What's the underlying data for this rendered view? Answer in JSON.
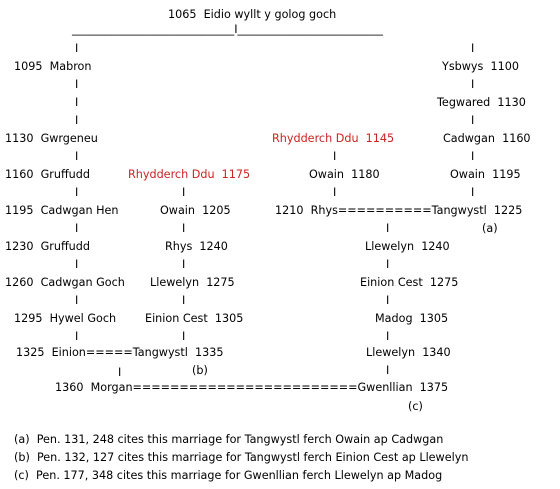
{
  "colors": {
    "text": "#000000",
    "highlight": "#cc2222"
  },
  "top": {
    "ancestor": "1065  Eidio wyllt y golog goch",
    "connector": "_____________________________I__________________________"
  },
  "left": {
    "p1095": "1095  Mabron",
    "p1130": "1130  Gwrgeneu",
    "p1160": "1160  Gruffudd",
    "p1195": "1195  Cadwgan Hen",
    "p1230": "1230  Gruffudd",
    "p1260": "1260  Cadwgan Goch",
    "p1295": "1295  Hywel Goch",
    "p1325_marriage": "1325  Einion=====Tangwystl  1335",
    "p1360_marriage": "1360  Morgan========================Gwenllian  1375"
  },
  "middle": {
    "rhydderch1175": "Rhydderch Ddu  1175",
    "owain1205": "Owain  1205",
    "rhys1240": "Rhys  1240",
    "llewelyn1275": "Llewelyn  1275",
    "einion1305": "Einion Cest  1305",
    "note_b": "(b)"
  },
  "right_middle": {
    "rhydderch1145": "Rhydderch Ddu  1145",
    "owain1180": "Owain  1180",
    "marriage1210": "1210  Rhys==========Tangwystl  1225",
    "llewelyn1240": "Llewelyn  1240",
    "einion1275": "Einion Cest  1275",
    "madog1305": "Madog  1305",
    "llewelyn1340": "Llewelyn  1340",
    "note_c": "(c)"
  },
  "right": {
    "ysbwys1100": "Ysbwys  1100",
    "tegwared1130": "Tegwared  1130",
    "cadwgan1160": "Cadwgan  1160",
    "owain1195": "Owain  1195",
    "note_a": "(a)"
  },
  "footnotes": {
    "a": "(a)  Pen. 131, 248 cites this marriage for Tangwystl ferch Owain ap Cadwgan",
    "b": "(b)  Pen. 132, 127 cites this marriage for Tangwystl ferch Einion Cest ap Llewelyn",
    "c": "(c)  Pen. 177, 348 cites this marriage for Gwenllian ferch Llewelyn ap Madog"
  }
}
